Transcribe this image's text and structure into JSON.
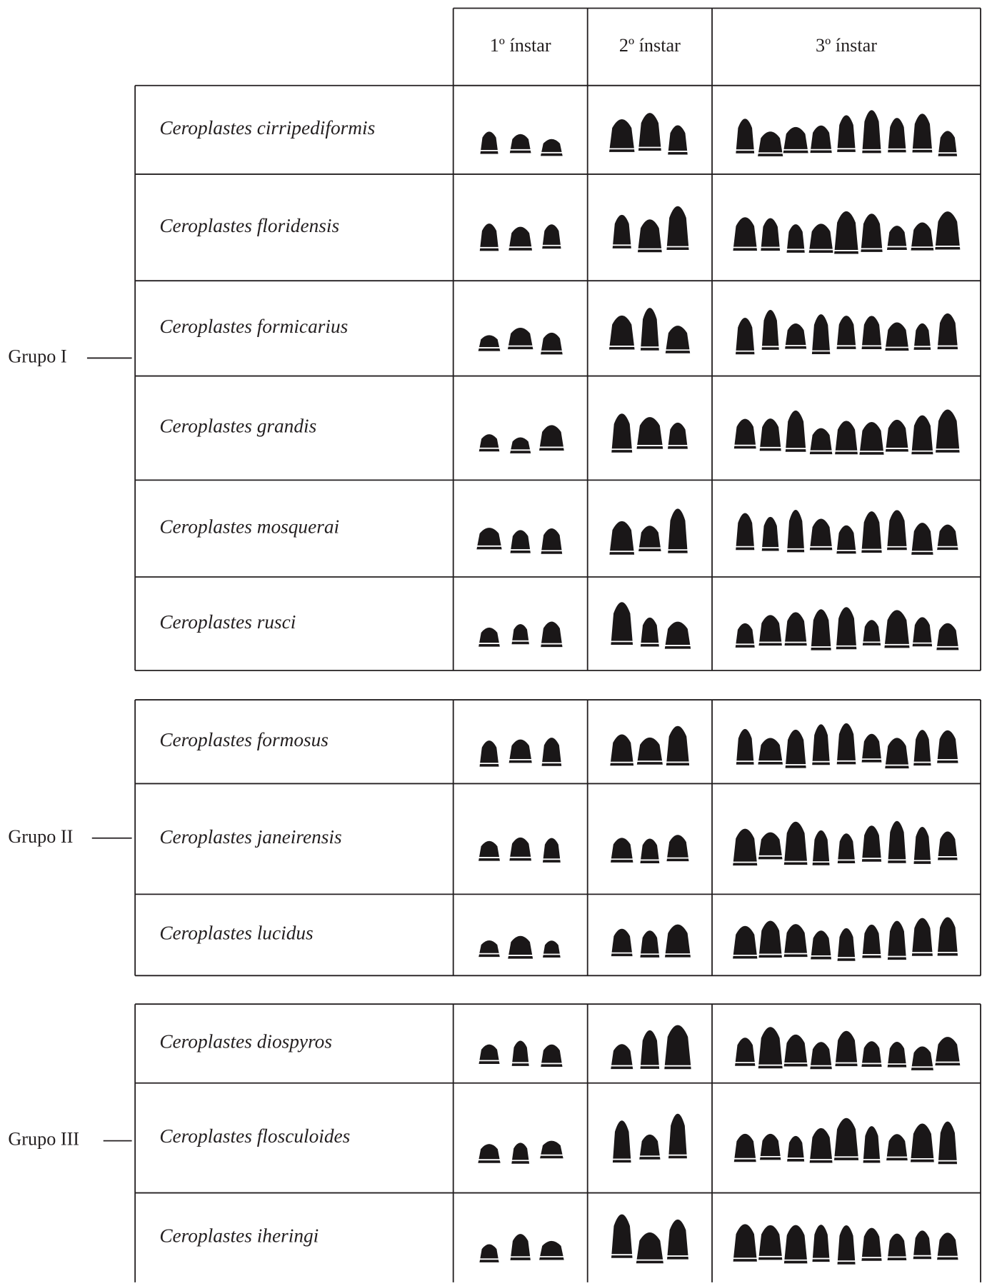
{
  "header": {
    "columns": [
      "1º ínstar",
      "2º ínstar",
      "3º ínstar"
    ]
  },
  "groups": [
    {
      "label": "Grupo I",
      "species": [
        "Ceroplastes cirripediformis",
        "Ceroplastes floridensis",
        "Ceroplastes formicarius",
        "Ceroplastes grandis",
        "Ceroplastes mosquerai",
        "Ceroplastes rusci"
      ]
    },
    {
      "label": "Grupo II",
      "species": [
        "Ceroplastes formosus",
        "Ceroplastes janeirensis",
        "Ceroplastes lucidus"
      ]
    },
    {
      "label": "Grupo III",
      "species": [
        "Ceroplastes diospyros",
        "Ceroplastes flosculoides",
        "Ceroplastes iheringi"
      ]
    }
  ]
}
